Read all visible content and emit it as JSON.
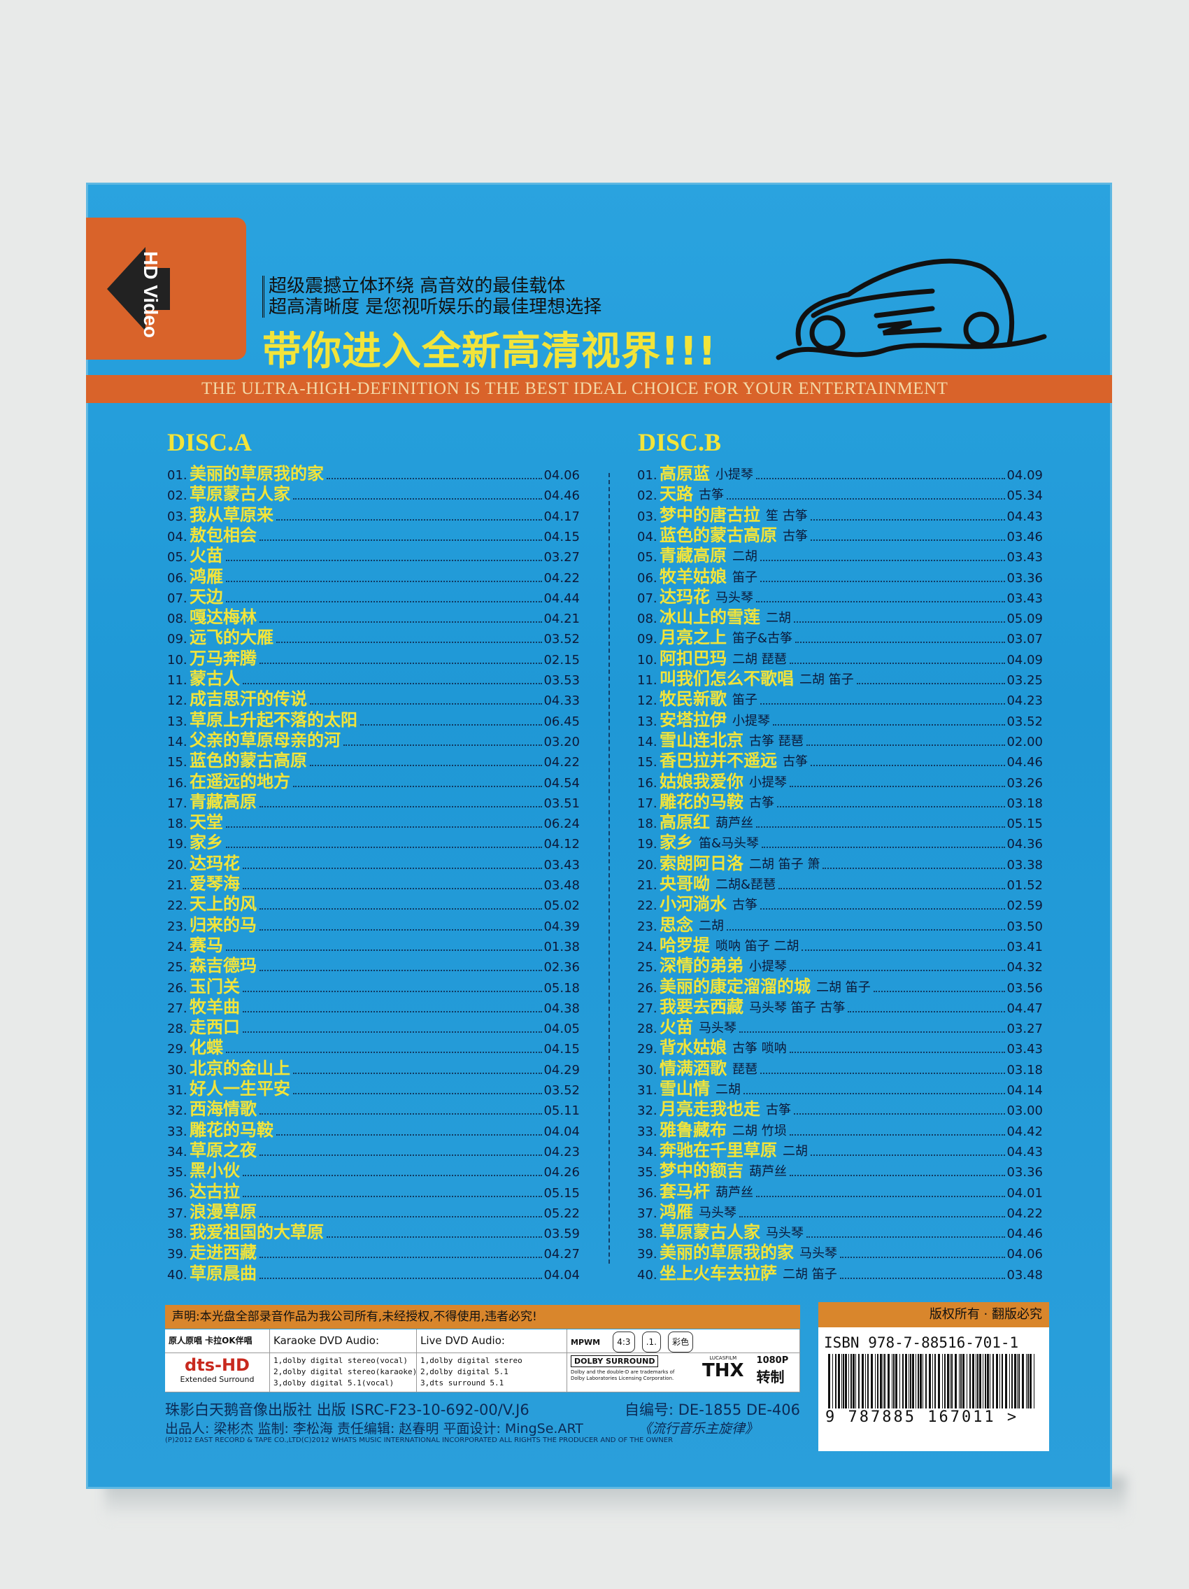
{
  "colors": {
    "cover_blue": "#2aa3df",
    "accent_orange": "#d9632a",
    "title_yellow": "#f2e43a",
    "text_navy": "#0c1a3a"
  },
  "header": {
    "badge": "HD Video",
    "tagline_1": "超级震撼立体环绕 高音效的最佳载体",
    "tagline_2": "超高清晰度 是您视听娱乐的最佳理想选择",
    "headline": "带你进入全新高清视界!!!",
    "banner": "THE ULTRA-HIGH-DEFINITION IS THE BEST IDEAL CHOICE FOR YOUR ENTERTAINMENT",
    "logo_icon": "car-sketch-icon"
  },
  "disc_a": {
    "title": "DISC.A",
    "tracks": [
      {
        "n": "01.",
        "t": "美丽的草原我的家",
        "d": "04.06"
      },
      {
        "n": "02.",
        "t": "草原蒙古人家",
        "d": "04.46"
      },
      {
        "n": "03.",
        "t": "我从草原来",
        "d": "04.17"
      },
      {
        "n": "04.",
        "t": "敖包相会",
        "d": "04.15"
      },
      {
        "n": "05.",
        "t": "火苗",
        "d": "03.27"
      },
      {
        "n": "06.",
        "t": "鸿雁",
        "d": "04.22"
      },
      {
        "n": "07.",
        "t": "天边",
        "d": "04.44"
      },
      {
        "n": "08.",
        "t": "嘎达梅林",
        "d": "04.21"
      },
      {
        "n": "09.",
        "t": "远飞的大雁",
        "d": "03.52"
      },
      {
        "n": "10.",
        "t": "万马奔腾",
        "d": "02.15"
      },
      {
        "n": "11.",
        "t": "蒙古人",
        "d": "03.53"
      },
      {
        "n": "12.",
        "t": "成吉思汗的传说",
        "d": "04.33"
      },
      {
        "n": "13.",
        "t": "草原上升起不落的太阳",
        "d": "06.45"
      },
      {
        "n": "14.",
        "t": "父亲的草原母亲的河",
        "d": "03.20"
      },
      {
        "n": "15.",
        "t": "蓝色的蒙古高原",
        "d": "04.22"
      },
      {
        "n": "16.",
        "t": "在遥远的地方",
        "d": "04.54"
      },
      {
        "n": "17.",
        "t": "青藏高原",
        "d": "03.51"
      },
      {
        "n": "18.",
        "t": "天堂",
        "d": "06.24"
      },
      {
        "n": "19.",
        "t": "家乡",
        "d": "04.12"
      },
      {
        "n": "20.",
        "t": "达玛花",
        "d": "03.43"
      },
      {
        "n": "21.",
        "t": "爱琴海",
        "d": "03.48"
      },
      {
        "n": "22.",
        "t": "天上的风",
        "d": "05.02"
      },
      {
        "n": "23.",
        "t": "归来的马",
        "d": "04.39"
      },
      {
        "n": "24.",
        "t": "赛马",
        "d": "01.38"
      },
      {
        "n": "25.",
        "t": "森吉德玛",
        "d": "02.36"
      },
      {
        "n": "26.",
        "t": "玉门关",
        "d": "05.18"
      },
      {
        "n": "27.",
        "t": "牧羊曲",
        "d": "04.38"
      },
      {
        "n": "28.",
        "t": "走西口",
        "d": "04.05"
      },
      {
        "n": "29.",
        "t": "化蝶",
        "d": "04.15"
      },
      {
        "n": "30.",
        "t": "北京的金山上",
        "d": "04.29"
      },
      {
        "n": "31.",
        "t": "好人一生平安",
        "d": "03.52"
      },
      {
        "n": "32.",
        "t": "西海情歌",
        "d": "05.11"
      },
      {
        "n": "33.",
        "t": "雕花的马鞍",
        "d": "04.04"
      },
      {
        "n": "34.",
        "t": "草原之夜",
        "d": "04.23"
      },
      {
        "n": "35.",
        "t": "黑小伙",
        "d": "04.26"
      },
      {
        "n": "36.",
        "t": "达古拉",
        "d": "05.15"
      },
      {
        "n": "37.",
        "t": "浪漫草原",
        "d": "05.22"
      },
      {
        "n": "38.",
        "t": "我爱祖国的大草原",
        "d": "03.59"
      },
      {
        "n": "39.",
        "t": "走进西藏",
        "d": "04.27"
      },
      {
        "n": "40.",
        "t": "草原晨曲",
        "d": "04.04"
      }
    ]
  },
  "disc_b": {
    "title": "DISC.B",
    "tracks": [
      {
        "n": "01.",
        "t": "高原蓝",
        "i": "小提琴",
        "d": "04.09"
      },
      {
        "n": "02.",
        "t": "天路",
        "i": "古筝",
        "d": "05.34"
      },
      {
        "n": "03.",
        "t": "梦中的唐古拉",
        "i": "笙 古筝",
        "d": "04.43"
      },
      {
        "n": "04.",
        "t": "蓝色的蒙古高原",
        "i": "古筝",
        "d": "03.46"
      },
      {
        "n": "05.",
        "t": "青藏高原",
        "i": "二胡",
        "d": "03.43"
      },
      {
        "n": "06.",
        "t": "牧羊姑娘",
        "i": "笛子",
        "d": "03.36"
      },
      {
        "n": "07.",
        "t": "达玛花",
        "i": "马头琴",
        "d": "03.43"
      },
      {
        "n": "08.",
        "t": "冰山上的雪莲",
        "i": "二胡",
        "d": "05.09"
      },
      {
        "n": "09.",
        "t": "月亮之上",
        "i": "笛子&古筝",
        "d": "03.07"
      },
      {
        "n": "10.",
        "t": "阿扣巴玛",
        "i": "二胡 琵琶",
        "d": "04.09"
      },
      {
        "n": "11.",
        "t": "叫我们怎么不歌唱",
        "i": "二胡 笛子",
        "d": "03.25"
      },
      {
        "n": "12.",
        "t": "牧民新歌",
        "i": "笛子",
        "d": "04.23"
      },
      {
        "n": "13.",
        "t": "安塔拉伊",
        "i": "小提琴",
        "d": "03.52"
      },
      {
        "n": "14.",
        "t": "雪山连北京",
        "i": "古筝 琵琶",
        "d": "02.00"
      },
      {
        "n": "15.",
        "t": "香巴拉并不遥远",
        "i": "古筝",
        "d": "04.46"
      },
      {
        "n": "16.",
        "t": "姑娘我爱你",
        "i": "小提琴",
        "d": "03.26"
      },
      {
        "n": "17.",
        "t": "雕花的马鞍",
        "i": "古筝",
        "d": "03.18"
      },
      {
        "n": "18.",
        "t": "高原红",
        "i": "葫芦丝",
        "d": "05.15"
      },
      {
        "n": "19.",
        "t": "家乡",
        "i": "笛&马头琴",
        "d": "04.36"
      },
      {
        "n": "20.",
        "t": "索朗阿日洛",
        "i": "二胡 笛子 箫",
        "d": "03.38"
      },
      {
        "n": "21.",
        "t": "央哥呦",
        "i": "二胡&琵琶",
        "d": "01.52"
      },
      {
        "n": "22.",
        "t": "小河淌水",
        "i": "古筝",
        "d": "02.59"
      },
      {
        "n": "23.",
        "t": "思念",
        "i": "二胡",
        "d": "03.50"
      },
      {
        "n": "24.",
        "t": "哈罗提",
        "i": "唢呐 笛子 二胡",
        "d": "03.41"
      },
      {
        "n": "25.",
        "t": "深情的弟弟",
        "i": "小提琴",
        "d": "04.32"
      },
      {
        "n": "26.",
        "t": "美丽的康定溜溜的城",
        "i": "二胡 笛子",
        "d": "03.56"
      },
      {
        "n": "27.",
        "t": "我要去西藏",
        "i": "马头琴 笛子 古筝",
        "d": "04.47"
      },
      {
        "n": "28.",
        "t": "火苗",
        "i": "马头琴",
        "d": "03.27"
      },
      {
        "n": "29.",
        "t": "背水姑娘",
        "i": "古筝 唢呐",
        "d": "03.43"
      },
      {
        "n": "30.",
        "t": "情满酒歌",
        "i": "琵琶",
        "d": "03.18"
      },
      {
        "n": "31.",
        "t": "雪山情",
        "i": "二胡",
        "d": "04.14"
      },
      {
        "n": "32.",
        "t": "月亮走我也走",
        "i": "古筝",
        "d": "03.00"
      },
      {
        "n": "33.",
        "t": "雅鲁藏布",
        "i": "二胡 竹埙",
        "d": "04.42"
      },
      {
        "n": "34.",
        "t": "奔驰在千里草原",
        "i": "二胡",
        "d": "04.43"
      },
      {
        "n": "35.",
        "t": "梦中的额吉",
        "i": "葫芦丝",
        "d": "03.36"
      },
      {
        "n": "36.",
        "t": "套马杆",
        "i": "葫芦丝",
        "d": "04.01"
      },
      {
        "n": "37.",
        "t": "鸿雁",
        "i": "马头琴",
        "d": "04.22"
      },
      {
        "n": "38.",
        "t": "草原蒙古人家",
        "i": "马头琴",
        "d": "04.46"
      },
      {
        "n": "39.",
        "t": "美丽的草原我的家",
        "i": "马头琴",
        "d": "04.06"
      },
      {
        "n": "40.",
        "t": "坐上火车去拉萨",
        "i": "二胡 笛子",
        "d": "03.48"
      }
    ]
  },
  "footer": {
    "notice": "声明:本光盘全部录音作品为我公司所有,未经授权,不得使用,违者必究!",
    "spec": {
      "c1_head": "原人原唱 卡拉OK伴唱",
      "c2_head": "Karaoke DVD Audio:",
      "c3_head": "Live DVD Audio:",
      "c4_badges": [
        "MPWM",
        "4:3",
        ".1.",
        "彩色"
      ],
      "dts_logo": "dts-HD",
      "dts_sub": "Extended Surround",
      "karaoke_lines": [
        "1,dolby digital stereo(vocal)",
        "2,dolby digital stereo(karaoke)",
        "3,dolby digital 5.1(vocal)"
      ],
      "live_lines": [
        "1,dolby digital stereo",
        "2,dolby digital 5.1",
        "3,dts surround 5.1"
      ],
      "dolby_logo": "DOLBY SURROUND",
      "dolby_note": "Dolby and the double-D are trademarks of Dolby Laboratories Licensing Corporation.",
      "thx_logo": "THX",
      "thx_top": "LUCASFILM",
      "res": "1080P",
      "conv": "转制"
    },
    "publisher_line": "珠影白天鹅音像出版社 出版 ISRC-F23-10-692-00/V.J6",
    "catalog": "自编号: DE-1855 DE-406",
    "credits": "出品人: 梁彬杰 监制: 李松海 责任编辑: 赵春明 平面设计: MingSe.ART",
    "series": "《流行音乐主旋律》",
    "copyright": "(P)2012 EAST RECORD & TAPE CO.,LTD(C)2012 WHATS MUSIC INTERNATIONAL INCORPORATED ALL RIGHTS THE PRODUCER AND OF THE OWNER",
    "rights": "版权所有 · 翻版必究",
    "isbn": "ISBN 978-7-88516-701-1",
    "ean": "9 787885 167011 >"
  }
}
